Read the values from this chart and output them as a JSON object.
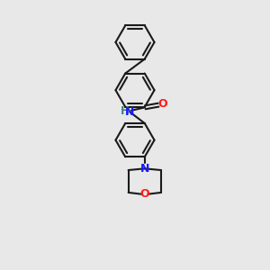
{
  "bg_color": "#e8e8e8",
  "bond_color": "#1a1a1a",
  "N_color": "#1a1aff",
  "O_color": "#ff1a1a",
  "H_color": "#408080",
  "line_width": 1.5,
  "fig_width": 3.0,
  "fig_height": 3.0,
  "dpi": 100,
  "xlim": [
    -1.2,
    1.2
  ],
  "ylim": [
    -0.2,
    5.0
  ]
}
